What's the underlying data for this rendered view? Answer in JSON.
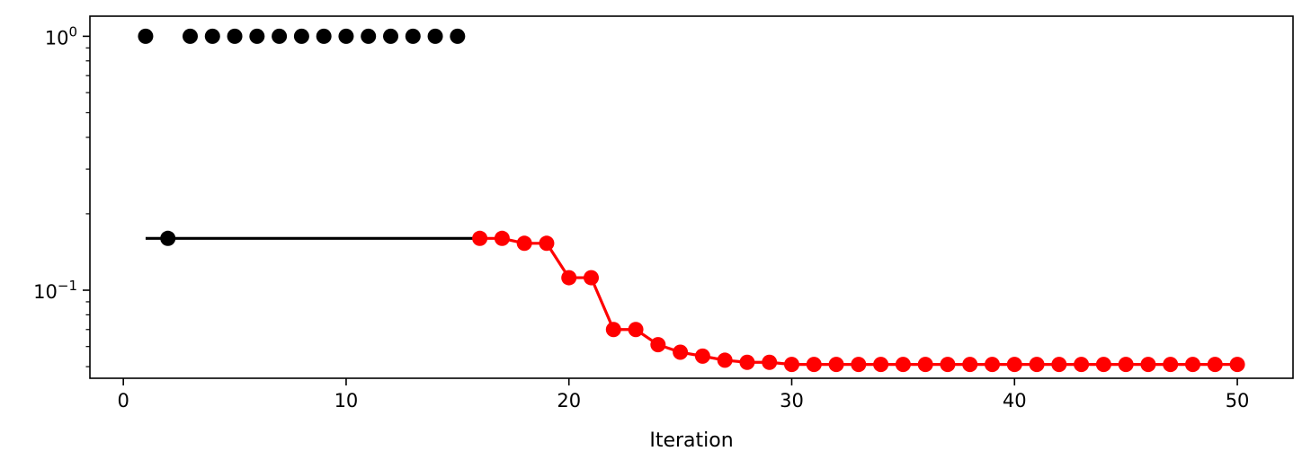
{
  "chart_data": {
    "type": "scatter",
    "xlabel": "Iteration",
    "ylabel": "",
    "title": "",
    "xlim": [
      -1.5,
      52.5
    ],
    "ylim": [
      0.045,
      1.2
    ],
    "yscale": "log",
    "grid": false,
    "x_ticks": [
      0,
      10,
      20,
      30,
      40,
      50
    ],
    "y_ticks": [
      {
        "value": 1,
        "mantissa": "10",
        "exponent": "0"
      },
      {
        "value": 0.1,
        "mantissa": "10",
        "exponent": "−1"
      }
    ],
    "colors": {
      "black": "#000000",
      "red": "#ff0000"
    },
    "series": [
      {
        "color": "#000000",
        "markers": true,
        "line": false,
        "x": [
          1,
          3,
          4,
          5,
          6,
          7,
          8,
          9,
          10,
          11,
          12,
          13,
          14,
          15
        ],
        "y": [
          1,
          1,
          1,
          1,
          1,
          1,
          1,
          1,
          1,
          1,
          1,
          1,
          1,
          1
        ]
      },
      {
        "color": "#000000",
        "markers": false,
        "line": true,
        "x": [
          1,
          16
        ],
        "y": [
          0.16,
          0.16
        ]
      },
      {
        "color": "#000000",
        "markers": true,
        "line": false,
        "x": [
          2
        ],
        "y": [
          0.16
        ]
      },
      {
        "color": "#ff0000",
        "markers": true,
        "line": true,
        "x": [
          16,
          17,
          18,
          19,
          20,
          21,
          22,
          23,
          24,
          25,
          26,
          27,
          28,
          29,
          30,
          31,
          32,
          33,
          34,
          35,
          36,
          37,
          38,
          39,
          40,
          41,
          42,
          43,
          44,
          45,
          46,
          47,
          48,
          49,
          50
        ],
        "y": [
          0.16,
          0.16,
          0.153,
          0.153,
          0.112,
          0.112,
          0.07,
          0.07,
          0.061,
          0.057,
          0.055,
          0.053,
          0.052,
          0.052,
          0.051,
          0.051,
          0.051,
          0.051,
          0.051,
          0.051,
          0.051,
          0.051,
          0.051,
          0.051,
          0.051,
          0.051,
          0.051,
          0.051,
          0.051,
          0.051,
          0.051,
          0.051,
          0.051,
          0.051,
          0.051
        ]
      }
    ]
  }
}
